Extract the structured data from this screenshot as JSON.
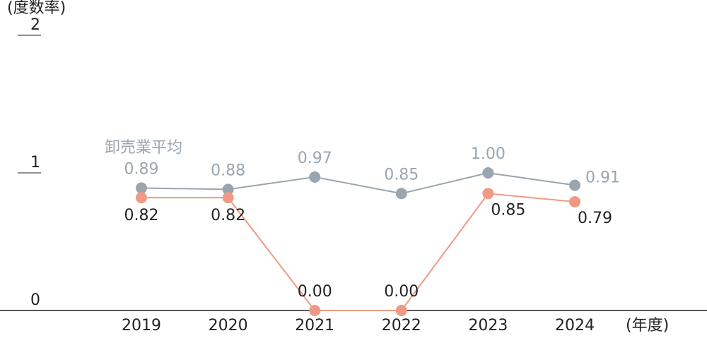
{
  "chart_data": {
    "type": "line",
    "y_unit": "(度数率)",
    "x_unit": "(年度)",
    "categories": [
      "2019",
      "2020",
      "2021",
      "2022",
      "2023",
      "2024"
    ],
    "series": [
      {
        "name": "卸売業平均",
        "color": "#9aa5ae",
        "values": [
          0.89,
          0.88,
          0.97,
          0.85,
          1.0,
          0.91
        ],
        "value_labels": [
          "0.89",
          "0.88",
          "0.97",
          "0.85",
          "1.00",
          "0.91"
        ]
      },
      {
        "color": "#ee9a85",
        "values": [
          0.82,
          0.82,
          0.0,
          0.0,
          0.85,
          0.79
        ],
        "value_labels": [
          "0.82",
          "0.82",
          "0.00",
          "0.00",
          "0.85",
          "0.79"
        ]
      }
    ],
    "ylim": [
      0,
      2.0
    ],
    "yticks": [
      0,
      1,
      2
    ]
  }
}
